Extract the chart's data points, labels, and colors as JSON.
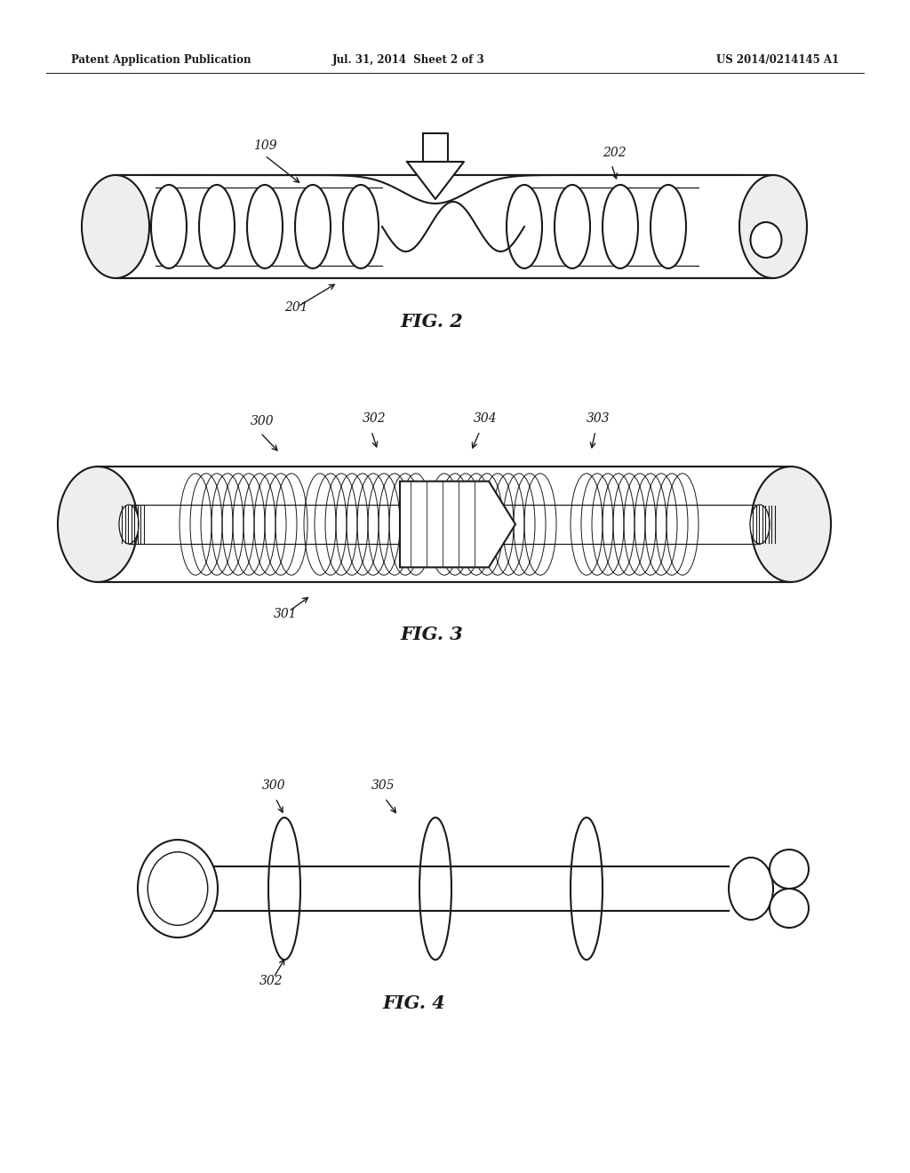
{
  "bg_color": "#ffffff",
  "lc": "#1a1a1a",
  "header_left": "Patent Application Publication",
  "header_center": "Jul. 31, 2014  Sheet 2 of 3",
  "header_right": "US 2014/0214145 A1",
  "fig2_label": "FIG. 2",
  "fig3_label": "FIG. 3",
  "fig4_label": "FIG. 4",
  "lw": 1.5,
  "lw_t": 0.9
}
